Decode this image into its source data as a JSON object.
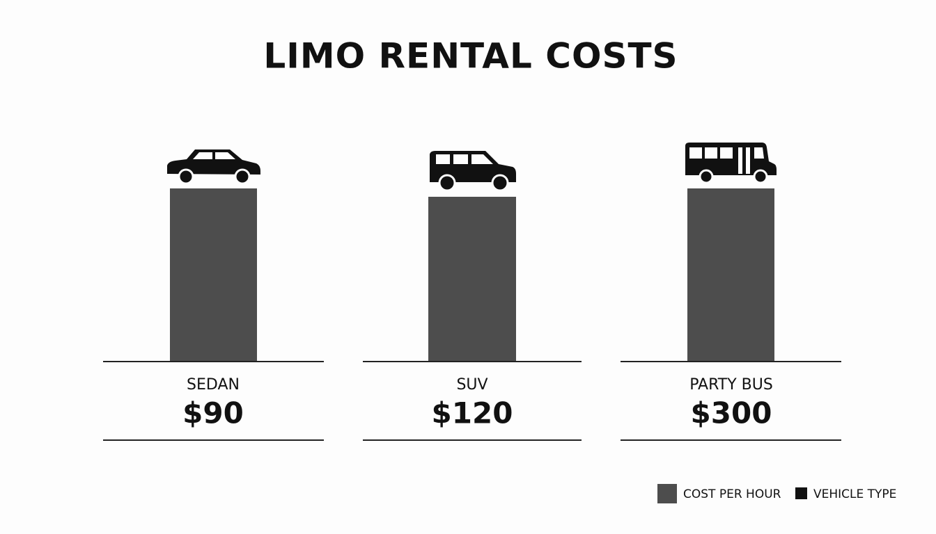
{
  "title": "LIMO RENTAL COSTS",
  "items": [
    {
      "label": "SEDAN",
      "price": "$90"
    },
    {
      "label": "SUV",
      "price": "$120"
    },
    {
      "label": "PARTY BUS",
      "price": "$300"
    }
  ],
  "legend": [
    "COST PER HOUR",
    "VEHICLE TYPE"
  ]
}
